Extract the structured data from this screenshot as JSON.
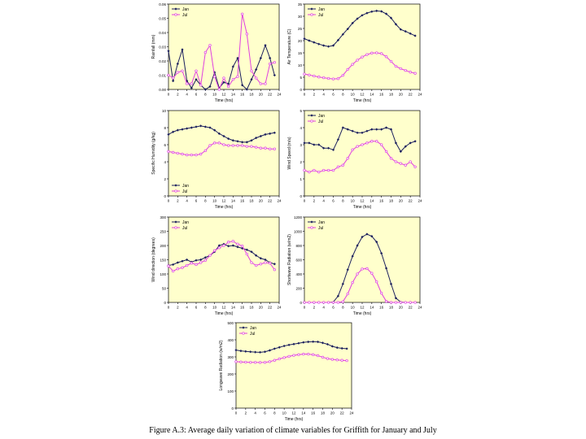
{
  "caption": "Figure A.3: Average daily variation of climate variables for Griffith for January and July",
  "colors": {
    "jan": "#1b1f5e",
    "jul": "#e040e0",
    "plot_bg": "#ffffcc"
  },
  "chart_data": [
    {
      "type": "line",
      "ylabel": "Rainfall (mm)",
      "xlabel": "Time (hrs)",
      "xlim": [
        0,
        24
      ],
      "ylim": [
        0,
        0.06
      ],
      "xticks": [
        "0",
        "2",
        "4",
        "6",
        "8",
        "10",
        "12",
        "14",
        "16",
        "18",
        "20",
        "22",
        "24"
      ],
      "yticks": [
        "0.00",
        "0.01",
        "0.02",
        "0.03",
        "0.04",
        "0.05",
        "0.06"
      ],
      "legend": "top-left",
      "x": [
        0,
        1,
        2,
        3,
        4,
        5,
        6,
        7,
        8,
        9,
        10,
        11,
        12,
        13,
        14,
        15,
        16,
        17,
        18,
        19,
        20,
        21,
        22,
        23
      ],
      "series": [
        {
          "name": "Jan",
          "values": [
            0.027,
            0.006,
            0.018,
            0.028,
            0.006,
            0.001,
            0.007,
            0.003,
            0.0,
            0.002,
            0.012,
            0.001,
            0.005,
            0.004,
            0.016,
            0.022,
            0.003,
            0.0,
            0.007,
            0.014,
            0.022,
            0.031,
            0.022,
            0.01
          ]
        },
        {
          "name": "Jul",
          "values": [
            0.01,
            0.008,
            0.012,
            0.013,
            0.004,
            0.004,
            0.013,
            0.003,
            0.026,
            0.031,
            0.009,
            0.0,
            0.008,
            0.002,
            0.007,
            0.009,
            0.053,
            0.039,
            0.013,
            0.008,
            0.004,
            0.004,
            0.018,
            0.019
          ]
        }
      ]
    },
    {
      "type": "line",
      "ylabel": "Air Temperature (C)",
      "xlabel": "Time (hrs)",
      "xlim": [
        0,
        24
      ],
      "ylim": [
        0,
        35
      ],
      "xticks": [
        "0",
        "2",
        "4",
        "6",
        "8",
        "10",
        "12",
        "14",
        "16",
        "18",
        "20",
        "22",
        "24"
      ],
      "yticks": [
        "0",
        "5",
        "10",
        "15",
        "20",
        "25",
        "30",
        "35"
      ],
      "legend": "top-left",
      "x": [
        0,
        1,
        2,
        3,
        4,
        5,
        6,
        7,
        8,
        9,
        10,
        11,
        12,
        13,
        14,
        15,
        16,
        17,
        18,
        19,
        20,
        21,
        22,
        23
      ],
      "series": [
        {
          "name": "Jan",
          "values": [
            20.8,
            20.0,
            19.3,
            18.6,
            18.0,
            17.6,
            18.0,
            20.2,
            22.6,
            24.8,
            27.2,
            29.0,
            30.4,
            31.3,
            31.9,
            32.2,
            32.0,
            31.0,
            29.3,
            26.7,
            24.6,
            23.8,
            22.9,
            22.0
          ]
        },
        {
          "name": "Jul",
          "values": [
            6.3,
            5.9,
            5.5,
            5.1,
            4.8,
            4.5,
            4.3,
            4.4,
            5.8,
            8.2,
            10.3,
            12.0,
            13.3,
            14.3,
            14.9,
            15.0,
            14.7,
            13.4,
            11.5,
            9.5,
            8.5,
            7.8,
            7.1,
            6.6
          ]
        }
      ]
    },
    {
      "type": "line",
      "ylabel": "Specific Humidity (g/kg)",
      "xlabel": "Time (hrs)",
      "xlim": [
        0,
        24
      ],
      "ylim": [
        0,
        10
      ],
      "xticks": [
        "0",
        "2",
        "4",
        "6",
        "8",
        "10",
        "12",
        "14",
        "16",
        "18",
        "20",
        "22",
        "24"
      ],
      "yticks": [
        "0",
        "2",
        "4",
        "6",
        "8",
        "10"
      ],
      "legend": "bottom-left",
      "x": [
        0,
        1,
        2,
        3,
        4,
        5,
        6,
        7,
        8,
        9,
        10,
        11,
        12,
        13,
        14,
        15,
        16,
        17,
        18,
        19,
        20,
        21,
        22,
        23
      ],
      "series": [
        {
          "name": "Jan",
          "values": [
            7.2,
            7.5,
            7.7,
            7.8,
            7.9,
            8.0,
            8.1,
            8.2,
            8.1,
            8.0,
            7.7,
            7.3,
            7.0,
            6.7,
            6.5,
            6.4,
            6.3,
            6.3,
            6.5,
            6.8,
            7.0,
            7.2,
            7.3,
            7.4
          ]
        },
        {
          "name": "Jul",
          "values": [
            5.2,
            5.1,
            5.0,
            4.9,
            4.8,
            4.8,
            4.8,
            4.9,
            5.3,
            5.9,
            6.2,
            6.2,
            6.0,
            5.9,
            5.9,
            5.9,
            5.9,
            5.8,
            5.8,
            5.7,
            5.6,
            5.6,
            5.5,
            5.5
          ]
        }
      ]
    },
    {
      "type": "line",
      "ylabel": "Wind Speed (m/s)",
      "xlabel": "Time (hrs)",
      "xlim": [
        0,
        24
      ],
      "ylim": [
        0,
        5
      ],
      "xticks": [
        "0",
        "2",
        "4",
        "6",
        "8",
        "10",
        "12",
        "14",
        "16",
        "18",
        "20",
        "22",
        "24"
      ],
      "yticks": [
        "0",
        "1",
        "2",
        "3",
        "4",
        "5"
      ],
      "legend": "top-left",
      "x": [
        0,
        1,
        2,
        3,
        4,
        5,
        6,
        7,
        8,
        9,
        10,
        11,
        12,
        13,
        14,
        15,
        16,
        17,
        18,
        19,
        20,
        21,
        22,
        23
      ],
      "series": [
        {
          "name": "Jan",
          "values": [
            3.1,
            3.1,
            3.0,
            3.0,
            2.8,
            2.8,
            2.7,
            3.3,
            4.0,
            3.9,
            3.8,
            3.7,
            3.7,
            3.8,
            3.9,
            3.9,
            3.9,
            4.0,
            3.9,
            3.1,
            2.6,
            2.9,
            3.1,
            3.2
          ]
        },
        {
          "name": "Jul",
          "values": [
            1.5,
            1.4,
            1.5,
            1.4,
            1.5,
            1.5,
            1.5,
            1.7,
            1.8,
            2.2,
            2.7,
            2.9,
            3.0,
            3.1,
            3.2,
            3.2,
            3.0,
            2.6,
            2.2,
            2.0,
            1.9,
            1.8,
            2.0,
            1.7
          ]
        }
      ]
    },
    {
      "type": "line",
      "ylabel": "Wind direction (degrees)",
      "xlabel": "Time (hrs)",
      "xlim": [
        0,
        24
      ],
      "ylim": [
        0,
        300
      ],
      "xticks": [
        "0",
        "2",
        "4",
        "6",
        "8",
        "10",
        "12",
        "14",
        "16",
        "18",
        "20",
        "22",
        "24"
      ],
      "yticks": [
        "0",
        "50",
        "100",
        "150",
        "200",
        "250",
        "300"
      ],
      "legend": "top-left",
      "x": [
        0,
        1,
        2,
        3,
        4,
        5,
        6,
        7,
        8,
        9,
        10,
        11,
        12,
        13,
        14,
        15,
        16,
        17,
        18,
        19,
        20,
        21,
        22,
        23
      ],
      "series": [
        {
          "name": "Jan",
          "values": [
            130,
            133,
            140,
            145,
            150,
            142,
            148,
            150,
            158,
            165,
            178,
            200,
            205,
            198,
            200,
            195,
            190,
            185,
            178,
            165,
            155,
            150,
            140,
            135
          ]
        },
        {
          "name": "Jul",
          "values": [
            128,
            110,
            118,
            122,
            130,
            138,
            133,
            140,
            148,
            165,
            182,
            192,
            200,
            212,
            215,
            205,
            198,
            170,
            140,
            130,
            135,
            140,
            138,
            115
          ]
        }
      ]
    },
    {
      "type": "line",
      "ylabel": "Shortwave Radiation (w/m2)",
      "xlabel": "Time (hrs)",
      "xlim": [
        0,
        24
      ],
      "ylim": [
        0,
        1200
      ],
      "xticks": [
        "0",
        "2",
        "4",
        "6",
        "8",
        "10",
        "12",
        "14",
        "16",
        "18",
        "20",
        "22",
        "24"
      ],
      "yticks": [
        "0",
        "200",
        "400",
        "600",
        "800",
        "1000",
        "1200"
      ],
      "legend": "top-left",
      "x": [
        0,
        1,
        2,
        3,
        4,
        5,
        6,
        7,
        8,
        9,
        10,
        11,
        12,
        13,
        14,
        15,
        16,
        17,
        18,
        19,
        20,
        21,
        22,
        23
      ],
      "series": [
        {
          "name": "Jan",
          "values": [
            0,
            0,
            0,
            0,
            0,
            0,
            5,
            90,
            260,
            460,
            650,
            800,
            920,
            960,
            930,
            850,
            690,
            480,
            260,
            60,
            5,
            0,
            0,
            0
          ]
        },
        {
          "name": "Jul",
          "values": [
            0,
            0,
            0,
            0,
            0,
            0,
            0,
            0,
            10,
            120,
            280,
            400,
            470,
            475,
            410,
            290,
            130,
            15,
            0,
            0,
            0,
            0,
            0,
            0
          ]
        }
      ]
    },
    {
      "type": "line",
      "ylabel": "Longwave Radiation (w/m2)",
      "xlabel": "Time (hrs)",
      "xlim": [
        0,
        24
      ],
      "ylim": [
        0,
        500
      ],
      "xticks": [
        "0",
        "2",
        "4",
        "6",
        "8",
        "10",
        "12",
        "14",
        "16",
        "18",
        "20",
        "22",
        "24"
      ],
      "yticks": [
        "0",
        "100",
        "200",
        "300",
        "400",
        "500"
      ],
      "legend": "top-left",
      "x": [
        0,
        1,
        2,
        3,
        4,
        5,
        6,
        7,
        8,
        9,
        10,
        11,
        12,
        13,
        14,
        15,
        16,
        17,
        18,
        19,
        20,
        21,
        22,
        23
      ],
      "series": [
        {
          "name": "Jan",
          "values": [
            340,
            335,
            332,
            330,
            328,
            327,
            330,
            338,
            348,
            356,
            364,
            370,
            375,
            380,
            385,
            388,
            389,
            388,
            382,
            374,
            362,
            354,
            350,
            348
          ]
        },
        {
          "name": "Jul",
          "values": [
            272,
            270,
            269,
            268,
            268,
            267,
            268,
            272,
            280,
            288,
            296,
            303,
            309,
            313,
            316,
            316,
            313,
            307,
            298,
            290,
            285,
            282,
            280,
            278
          ]
        }
      ]
    }
  ]
}
